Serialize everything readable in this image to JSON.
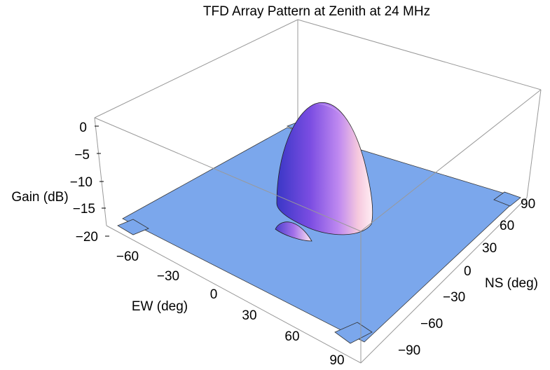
{
  "chart_data": {
    "type": "surface3d",
    "title": "TFD Array Pattern at Zenith at 24 MHz",
    "zlabel": "Gain (dB)",
    "xlabel": "EW (deg)",
    "ylabel": "NS (deg)",
    "zlim": [
      -20,
      0
    ],
    "xlim": [
      -90,
      90
    ],
    "ylim": [
      -90,
      90
    ],
    "z_ticks": [
      "0",
      "−5",
      "−10",
      "−15",
      "−20"
    ],
    "x_ticks": [
      "−60",
      "−30",
      "0",
      "30",
      "60",
      "90"
    ],
    "y_ticks": [
      "−90",
      "−60",
      "−30",
      "0",
      "30",
      "60",
      "90"
    ],
    "floor_value": -20,
    "main_lobe": {
      "center_ew": 0,
      "center_ns": 0,
      "peak_gain": 0
    },
    "side_lobe": {
      "center_ew": -30,
      "center_ns": -15,
      "peak_gain": -18
    },
    "colors": {
      "floor": "#7ba7ec",
      "lobe_dark": "#3b38c8",
      "lobe_mid": "#9a55e6",
      "lobe_light": "#ffe4ee"
    }
  }
}
